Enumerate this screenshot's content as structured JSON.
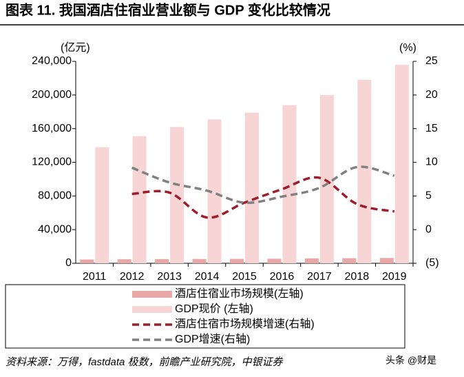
{
  "chart_data": {
    "type": "bar",
    "title": "图表 11. 我国酒店住宿业营业额与 GDP 变化比较情况",
    "y_label": "(亿元)",
    "y2_label": "(%)",
    "source": "资料来源：万得，fastdata 极数，前瞻产业研究院，中银证券",
    "watermark": "头条 @财是",
    "categories": [
      "2011",
      "2012",
      "2013",
      "2014",
      "2015",
      "2016",
      "2017",
      "2018",
      "2019"
    ],
    "series": [
      {
        "name": "酒店住宿业市场规模(左轴)",
        "type": "bar",
        "color": "#e8a8a8",
        "values": [
          4500,
          4800,
          5000,
          5100,
          5200,
          5400,
          5800,
          6000,
          6300
        ]
      },
      {
        "name": "GDP现价 (左轴)",
        "type": "bar",
        "color": "#f8d5d5",
        "values": [
          138000,
          151000,
          162000,
          171000,
          179000,
          188000,
          200000,
          218000,
          236000
        ]
      },
      {
        "name": "酒店住宿市场规模增速(右轴)",
        "type": "line",
        "axis": "y2",
        "color": "#a01c2a",
        "values": [
          null,
          5.3,
          5.5,
          1.8,
          4.0,
          6.0,
          7.7,
          3.8,
          2.7
        ]
      },
      {
        "name": "GDP增速(右轴)",
        "type": "line",
        "axis": "y2",
        "color": "#808080",
        "values": [
          null,
          9.2,
          7.0,
          5.8,
          4.0,
          4.9,
          6.2,
          9.3,
          8.0
        ]
      }
    ],
    "ylim": [
      0,
      240000
    ],
    "yticks": [
      0,
      {
        "value": 40000,
        "label": "40,000"
      },
      {
        "value": 80000,
        "label": "80,000"
      },
      {
        "value": 120000,
        "label": "120,000"
      },
      {
        "value": 160000,
        "label": "160,000"
      },
      {
        "value": 200000,
        "label": "200,000"
      },
      {
        "value": 240000,
        "label": "240,000"
      }
    ],
    "y2lim": [
      -5,
      25
    ],
    "y2ticks": [
      {
        "value": -5,
        "label": "(5)"
      },
      0,
      5,
      10,
      15,
      20,
      25
    ],
    "grid": false
  }
}
